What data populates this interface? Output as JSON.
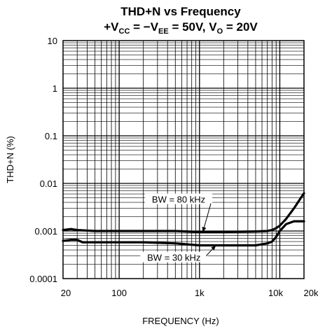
{
  "chart_data": {
    "type": "line",
    "title": "THD+N vs Frequency",
    "subtitle": {
      "p1": "+V",
      "s1": "CC",
      "p2": " = −V",
      "s2": "EE",
      "p3": " = 50V, V",
      "s3": "O",
      "p4": " = 20V"
    },
    "xlabel": "FREQUENCY (Hz)",
    "ylabel": "THD+N (%)",
    "xscale": "log",
    "yscale": "log",
    "xlim": [
      20,
      20000
    ],
    "ylim": [
      0.0001,
      10
    ],
    "x_ticks": [
      {
        "value": 20,
        "label": "20"
      },
      {
        "value": 100,
        "label": "100"
      },
      {
        "value": 1000,
        "label": "1k"
      },
      {
        "value": 10000,
        "label": "10k"
      },
      {
        "value": 20000,
        "label": "20k"
      }
    ],
    "y_ticks": [
      {
        "value": 10,
        "label": "10"
      },
      {
        "value": 1,
        "label": "1"
      },
      {
        "value": 0.1,
        "label": "0.1"
      },
      {
        "value": 0.01,
        "label": "0.01"
      },
      {
        "value": 0.001,
        "label": "0.001"
      },
      {
        "value": 0.0001,
        "label": "0.0001"
      }
    ],
    "grid": true,
    "series": [
      {
        "name": "BW = 80 kHz",
        "x": [
          20,
          25,
          30,
          50,
          100,
          200,
          500,
          1000,
          2000,
          5000,
          7000,
          8000,
          9000,
          10000,
          12000,
          15000,
          18000,
          20000
        ],
        "y": [
          0.00105,
          0.0011,
          0.00105,
          0.001,
          0.001,
          0.001,
          0.001,
          0.00095,
          0.00095,
          0.00098,
          0.001,
          0.00105,
          0.00115,
          0.0013,
          0.0018,
          0.003,
          0.0048,
          0.0062
        ]
      },
      {
        "name": "BW = 30 kHz",
        "x": [
          20,
          25,
          30,
          35,
          50,
          100,
          200,
          500,
          1000,
          2000,
          5000,
          7000,
          8000,
          9000,
          10000,
          12000,
          15000,
          18000,
          20000
        ],
        "y": [
          0.00062,
          0.00065,
          0.00065,
          0.00058,
          0.00058,
          0.00058,
          0.00058,
          0.00055,
          0.0005,
          0.0005,
          0.0005,
          0.00055,
          0.0006,
          0.00075,
          0.001,
          0.0014,
          0.0016,
          0.0016,
          0.0016
        ]
      }
    ],
    "annotations": [
      {
        "text": "BW = 80 kHz",
        "series": "BW = 80 kHz",
        "at_x": 1100,
        "at_y": 0.00095,
        "label_x": 550,
        "label_y": 0.0045,
        "label_anchor": "middle"
      },
      {
        "text": "BW = 30 kHz",
        "series": "BW = 30 kHz",
        "at_x": 1600,
        "at_y": 0.0005,
        "label_x": 480,
        "label_y": 0.00027,
        "label_anchor": "middle"
      }
    ]
  }
}
